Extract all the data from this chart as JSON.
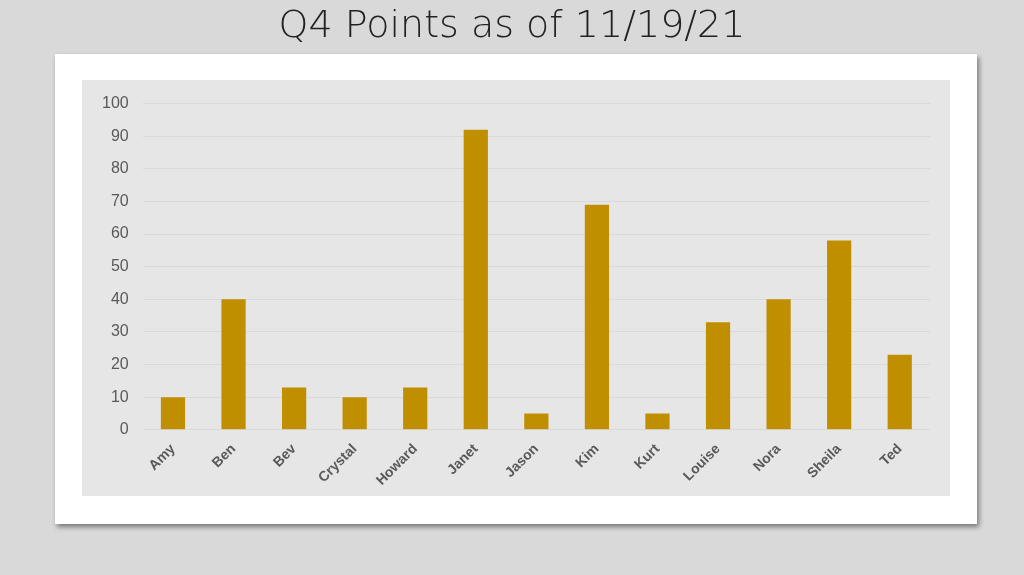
{
  "chart_data": {
    "type": "bar",
    "title": "Q4 Points as of 11/19/21",
    "categories": [
      "Amy",
      "Ben",
      "Bev",
      "Crystal",
      "Howard",
      "Janet",
      "Jason",
      "Kim",
      "Kurt",
      "Louise",
      "Nora",
      "Sheila",
      "Ted"
    ],
    "values": [
      10,
      40,
      13,
      10,
      13,
      92,
      5,
      69,
      5,
      33,
      40,
      58,
      23
    ],
    "color": "#bf8f00",
    "ylim": [
      0,
      100
    ],
    "yticks": [
      0,
      10,
      20,
      30,
      40,
      50,
      60,
      70,
      80,
      90,
      100
    ],
    "grid": "y",
    "legend": false
  }
}
